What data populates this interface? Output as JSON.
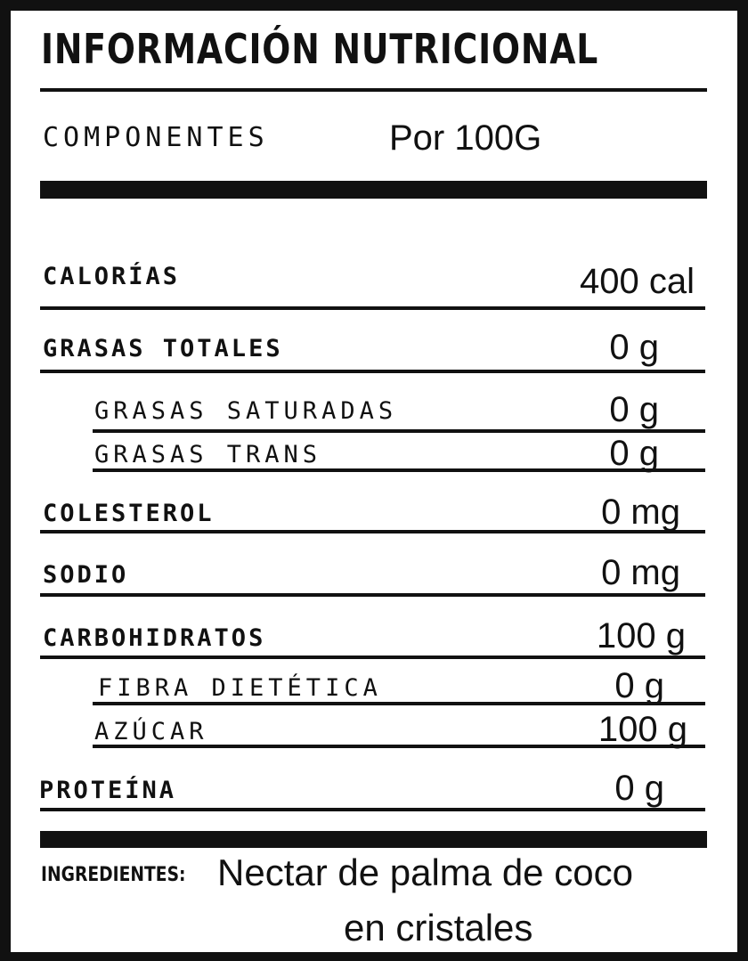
{
  "title": "INFORMACIÓN NUTRICIONAL",
  "header": {
    "components_label": "COMPONENTES",
    "per_label": "Por 100G"
  },
  "rows": [
    {
      "label": "CALORÍAS",
      "value": "400 cal"
    },
    {
      "label": "GRASAS TOTALES",
      "value": "0 g"
    },
    {
      "label": "GRASAS SATURADAS",
      "value": "0 g"
    },
    {
      "label": "GRASAS TRANS",
      "value": "0 g"
    },
    {
      "label": "COLESTEROL",
      "value": "0 mg"
    },
    {
      "label": "SODIO",
      "value": "0 mg"
    },
    {
      "label": "CARBOHIDRATOS",
      "value": "100 g"
    },
    {
      "label": "FIBRA DIETÉTICA",
      "value": "0 g"
    },
    {
      "label": "AZÚCAR",
      "value": "100 g"
    },
    {
      "label": "PROTEÍNA",
      "value": "0 g"
    }
  ],
  "ingredients": {
    "label": "INGREDIENTES:",
    "line1": "Nectar de palma de coco",
    "line2": "en cristales"
  }
}
